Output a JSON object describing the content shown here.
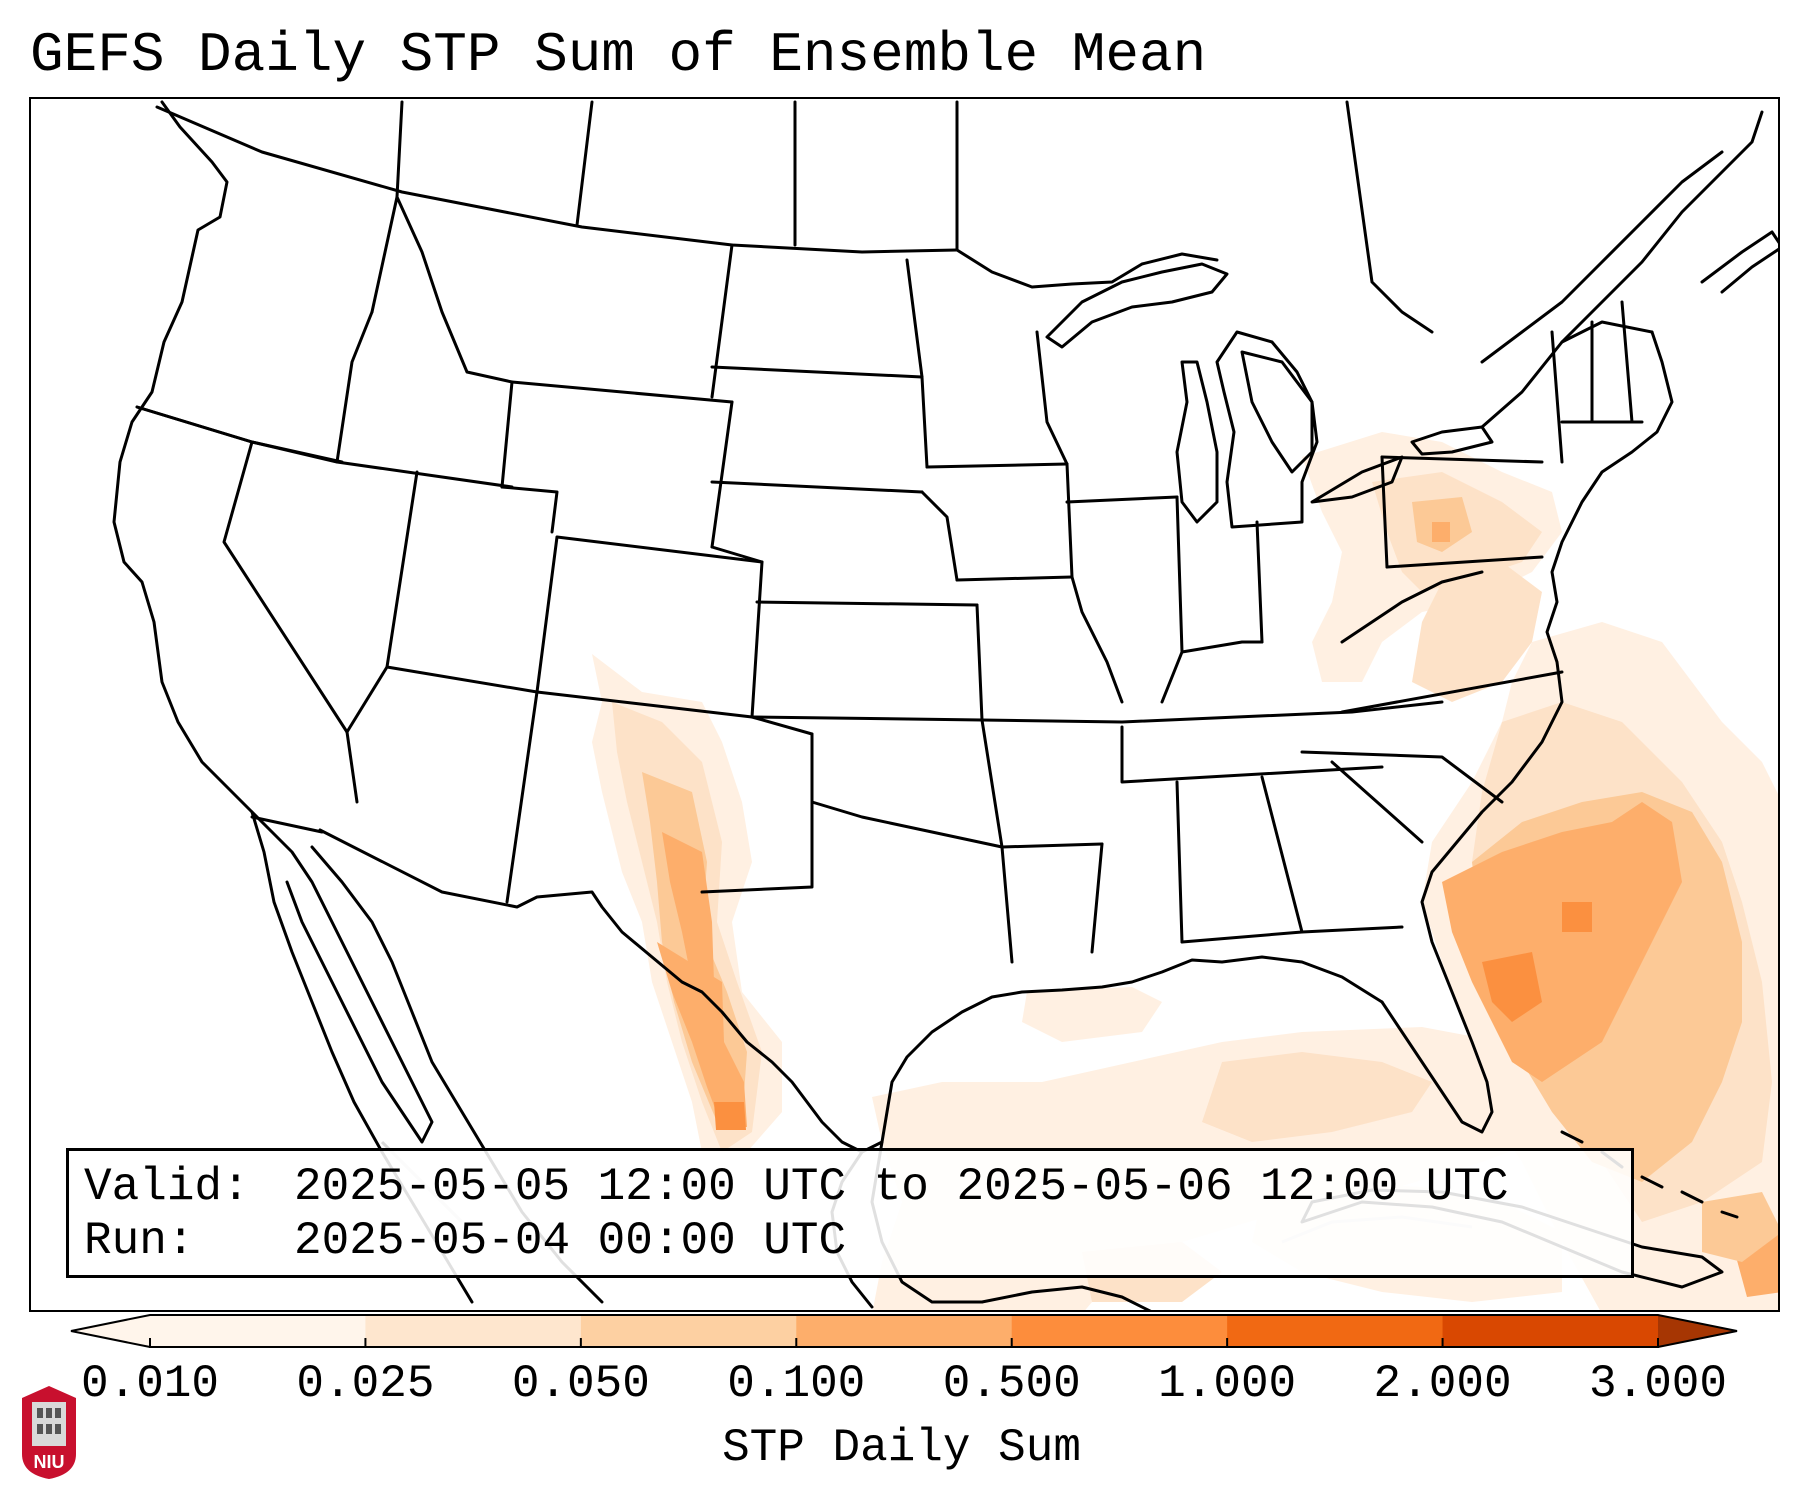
{
  "title": "GEFS Daily STP Sum of Ensemble Mean",
  "valid_box": {
    "valid_label": "Valid:",
    "valid_value": "2025-05-05 12:00 UTC to 2025-05-06 12:00 UTC",
    "run_label": "Run:",
    "run_value": "2025-05-04 00:00 UTC"
  },
  "colorbar": {
    "label": "STP Daily Sum",
    "ticks": [
      "0.010",
      "0.025",
      "0.050",
      "0.100",
      "0.500",
      "1.000",
      "2.000",
      "3.000"
    ],
    "colors": [
      "#fff5eb",
      "#fee6ce",
      "#fdd0a2",
      "#fdae6b",
      "#fd8d3c",
      "#f16913",
      "#d94801",
      "#a63603"
    ],
    "extend": "both"
  },
  "logo": {
    "text": "NIU",
    "colors": {
      "background": "#c8102e",
      "icon": "#d9d9d9"
    }
  },
  "map": {
    "projection": "Lambert conformal, CONUS",
    "shading_colors": {
      "level_1": "#fff0e2",
      "level_2": "#fde2c8",
      "level_3": "#fcc996",
      "level_4": "#fdae6b",
      "level_5": "#fb9040"
    }
  }
}
